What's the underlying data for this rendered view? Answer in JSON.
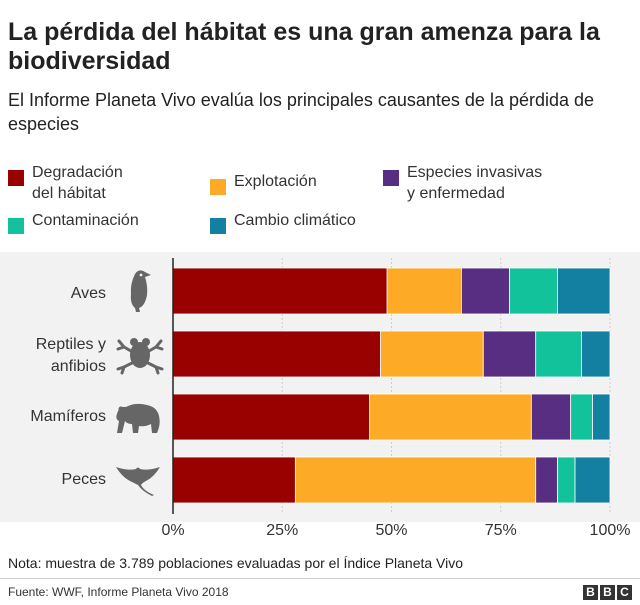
{
  "title": "La pérdida del hábitat es una gran amenza para la biodiversidad",
  "subtitle": "El Informe Planeta Vivo evalúa los principales causantes de la pérdida de especies",
  "note": "Nota: muestra de 3.789 poblaciones evaluadas por el Índice Planeta Vivo",
  "source": "Fuente: WWF, Informe Planeta Vivo 2018",
  "logo": [
    "B",
    "B",
    "C"
  ],
  "icons": [
    "bird-icon",
    "frog-icon",
    "bear-icon",
    "manta-ray-icon"
  ],
  "chart_data": {
    "type": "bar",
    "orientation": "horizontal",
    "stacked": true,
    "categories": [
      "Aves",
      "Reptiles y\nanfibios",
      "Mamíferos",
      "Peces"
    ],
    "series": [
      {
        "name": "Degradación\ndel hábitat",
        "color": "#990000",
        "values": [
          49,
          47.5,
          45,
          28
        ]
      },
      {
        "name": "Explotación",
        "color": "#fdaa26",
        "values": [
          17,
          23.5,
          37,
          55
        ]
      },
      {
        "name": "Especies invasivas\ny enfermedad",
        "color": "#582e82",
        "values": [
          11,
          12,
          9,
          5
        ]
      },
      {
        "name": "Contaminación",
        "color": "#12c29a",
        "values": [
          11,
          10.5,
          5,
          4
        ]
      },
      {
        "name": "Cambio climático",
        "color": "#1380a1",
        "values": [
          12,
          6.5,
          4,
          8
        ]
      }
    ],
    "xlim": [
      0,
      100
    ],
    "xticks": [
      "0%",
      "25%",
      "50%",
      "75%",
      "100%"
    ],
    "xtick_values": [
      0,
      25,
      50,
      75,
      100
    ],
    "grid": true,
    "legend_position": "top"
  }
}
